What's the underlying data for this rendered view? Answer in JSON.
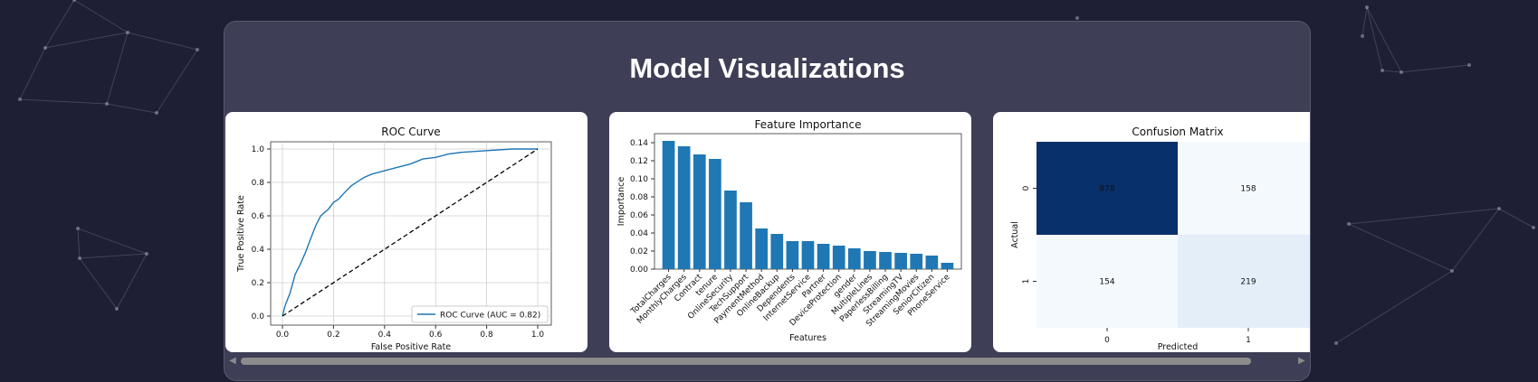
{
  "page": {
    "title": "Model Visualizations"
  },
  "colors": {
    "bar": "#1f77b4",
    "roc_line": "#1f77b4",
    "cm_dark": "#08306b",
    "cm_mid": "#e3eef9",
    "cm_light": "#f4f9fe"
  },
  "icons": {
    "scroll_left": "scroll-left-arrow-icon",
    "scroll_right": "scroll-right-arrow-icon"
  },
  "chart_data": [
    {
      "type": "line",
      "title": "ROC Curve",
      "xlabel": "False Positive Rate",
      "ylabel": "True Positive Rate",
      "xlim": [
        0,
        1
      ],
      "ylim": [
        0,
        1
      ],
      "grid": true,
      "legend_position": "lower right",
      "x_ticks": [
        "0.0",
        "0.2",
        "0.4",
        "0.6",
        "0.8",
        "1.0"
      ],
      "y_ticks": [
        "0.0",
        "0.2",
        "0.4",
        "0.6",
        "0.8",
        "1.0"
      ],
      "series": [
        {
          "name": "ROC Curve (AUC = 0.82)",
          "x": [
            0,
            0.01,
            0.03,
            0.05,
            0.07,
            0.09,
            0.11,
            0.13,
            0.15,
            0.18,
            0.2,
            0.22,
            0.25,
            0.27,
            0.3,
            0.32,
            0.35,
            0.4,
            0.45,
            0.5,
            0.55,
            0.6,
            0.65,
            0.7,
            0.8,
            0.9,
            1.0
          ],
          "y": [
            0,
            0.06,
            0.14,
            0.25,
            0.31,
            0.38,
            0.46,
            0.54,
            0.6,
            0.64,
            0.68,
            0.7,
            0.75,
            0.78,
            0.81,
            0.83,
            0.85,
            0.87,
            0.89,
            0.91,
            0.94,
            0.95,
            0.97,
            0.98,
            0.99,
            1.0,
            1.0
          ]
        },
        {
          "name": "",
          "style": "dashed",
          "x": [
            0,
            1
          ],
          "y": [
            0,
            1
          ]
        }
      ]
    },
    {
      "type": "bar",
      "title": "Feature Importance",
      "xlabel": "Features",
      "ylabel": "Importance",
      "ylim": [
        0,
        0.15
      ],
      "y_ticks": [
        "0.00",
        "0.02",
        "0.04",
        "0.06",
        "0.08",
        "0.10",
        "0.12",
        "0.14"
      ],
      "categories": [
        "TotalCharges",
        "MonthlyCharges",
        "Contract",
        "tenure",
        "OnlineSecurity",
        "TechSupport",
        "PaymentMethod",
        "OnlineBackup",
        "Dependents",
        "InternetService",
        "Partner",
        "DeviceProtection",
        "gender",
        "MultipleLines",
        "PaperlessBilling",
        "StreamingTV",
        "StreamingMovies",
        "SeniorCitizen",
        "PhoneService"
      ],
      "values": [
        0.142,
        0.136,
        0.127,
        0.122,
        0.087,
        0.074,
        0.045,
        0.039,
        0.031,
        0.031,
        0.028,
        0.026,
        0.023,
        0.02,
        0.019,
        0.018,
        0.017,
        0.015,
        0.007
      ]
    },
    {
      "type": "heatmap",
      "title": "Confusion Matrix",
      "xlabel": "Predicted",
      "ylabel": "Actual",
      "x_ticks": [
        "0",
        "1"
      ],
      "y_ticks": [
        "0",
        "1"
      ],
      "values": [
        [
          878,
          158
        ],
        [
          154,
          219
        ]
      ],
      "labels": [
        [
          "878",
          "158"
        ],
        [
          "154",
          "219"
        ]
      ]
    }
  ]
}
